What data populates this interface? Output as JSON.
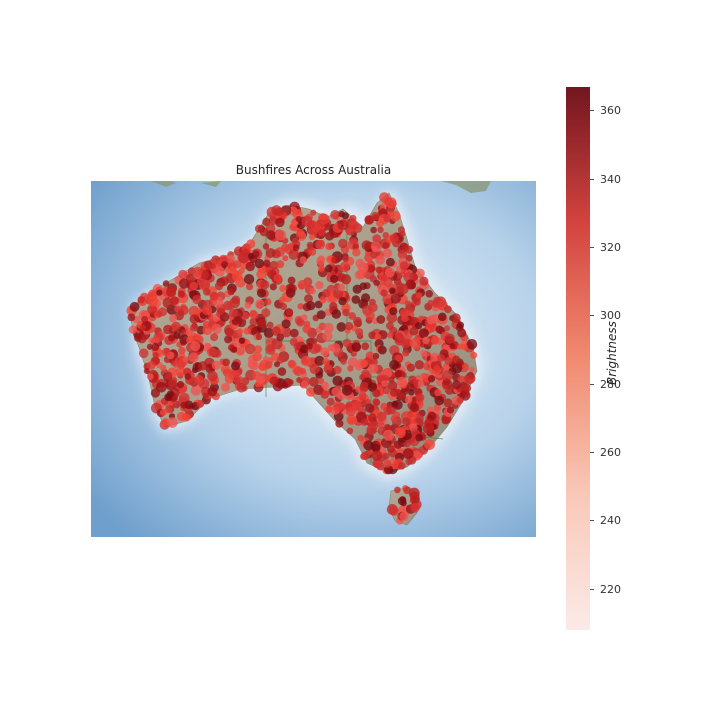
{
  "map": {
    "title": "Bushfires Across Australia",
    "region": "Australia",
    "basemap": "shaded relief",
    "ocean_color": "#7aa9d4",
    "land_color": "#a9a18f",
    "state_border_color": "#2e7d32",
    "marker_colormap": "Reds",
    "marker_alpha": 0.7
  },
  "colorbar": {
    "label": "Brightness",
    "min": 208,
    "max": 367,
    "ticks": [
      "220",
      "240",
      "260",
      "280",
      "300",
      "320",
      "340",
      "360"
    ],
    "tick_values": [
      220,
      240,
      260,
      280,
      300,
      320,
      340,
      360
    ],
    "low_color": "#fbe9e7",
    "high_color": "#67000d"
  }
}
